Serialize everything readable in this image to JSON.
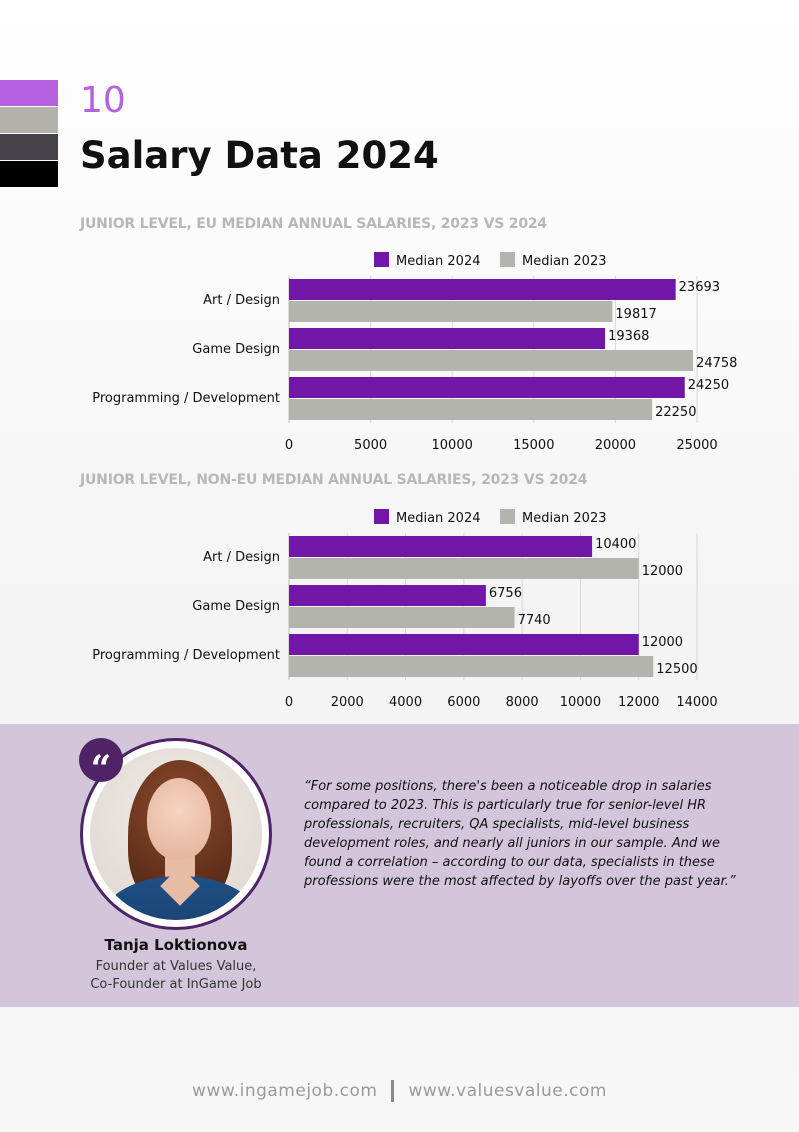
{
  "header": {
    "page_number": "10",
    "title": "Salary Data 2024",
    "swatch_colors": [
      "#b562e0",
      "#b2b2aa",
      "#47424a",
      "#000000"
    ]
  },
  "chart_data": [
    {
      "type": "bar",
      "orientation": "horizontal",
      "title": "JUNIOR LEVEL, EU MEDIAN ANNUAL SALARIES, 2023 VS 2024",
      "categories": [
        "Art / Design",
        "Game Design",
        "Programming / Development"
      ],
      "series": [
        {
          "name": "Median 2024",
          "color": "#7216a8",
          "values": [
            23693,
            19368,
            24250
          ]
        },
        {
          "name": "Median 2023",
          "color": "#b4b4ae",
          "values": [
            19817,
            24758,
            22250
          ]
        }
      ],
      "xlim": [
        0,
        25000
      ],
      "xticks": [
        0,
        5000,
        10000,
        15000,
        20000,
        25000
      ],
      "grid": true,
      "legend": "top-center",
      "data_labels": true
    },
    {
      "type": "bar",
      "orientation": "horizontal",
      "title": "JUNIOR LEVEL, NON-EU MEDIAN ANNUAL SALARIES, 2023 VS 2024",
      "categories": [
        "Art / Design",
        "Game Design",
        "Programming / Development"
      ],
      "series": [
        {
          "name": "Median 2024",
          "color": "#7216a8",
          "values": [
            10400,
            6756,
            12000
          ]
        },
        {
          "name": "Median 2023",
          "color": "#b4b4ae",
          "values": [
            12000,
            7740,
            12500
          ]
        }
      ],
      "xlim": [
        0,
        14000
      ],
      "xticks": [
        0,
        2000,
        4000,
        6000,
        8000,
        10000,
        12000,
        14000
      ],
      "grid": true,
      "legend": "top-center",
      "data_labels": true
    }
  ],
  "quote": {
    "badge_icon": "quote-icon",
    "badge_glyph": "“",
    "text": "“For some positions, there's been a noticeable drop in salaries compared to 2023. This is particularly true for senior-level HR professionals, recruiters, QA specialists, mid-level business development roles, and nearly all juniors in our sample. And we found a correlation – according to our data, specialists in these professions were the most affected by layoffs over the past year.”",
    "author_name": "Tanja Loktionova",
    "author_role_1": "Founder at Values Value,",
    "author_role_2": "Co-Founder at InGame Job",
    "band_color": "#d3c6da"
  },
  "footer": {
    "link_1": "www.ingamejob.com",
    "link_2": "www.valuesvalue.com"
  }
}
